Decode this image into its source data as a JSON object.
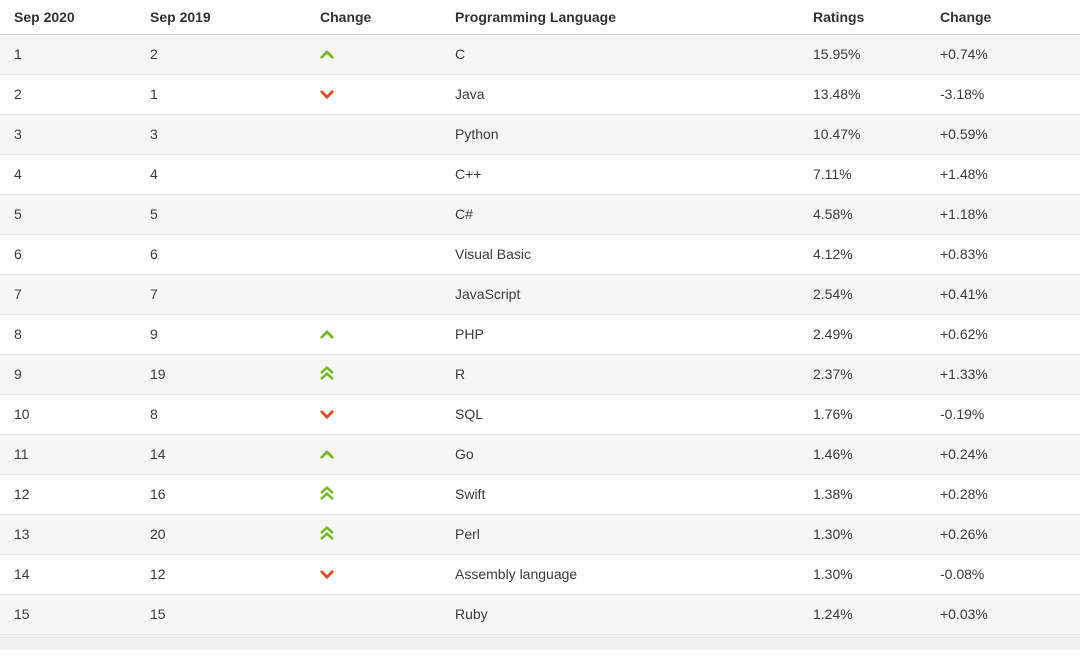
{
  "table": {
    "columns": [
      "Sep 2020",
      "Sep 2019",
      "Change",
      "Programming Language",
      "Ratings",
      "Change"
    ],
    "rows": [
      {
        "rank_2020": "1",
        "rank_2019": "2",
        "move": "up",
        "language": "C",
        "ratings": "15.95%",
        "change": "+0.74%"
      },
      {
        "rank_2020": "2",
        "rank_2019": "1",
        "move": "down",
        "language": "Java",
        "ratings": "13.48%",
        "change": "-3.18%"
      },
      {
        "rank_2020": "3",
        "rank_2019": "3",
        "move": "none",
        "language": "Python",
        "ratings": "10.47%",
        "change": "+0.59%"
      },
      {
        "rank_2020": "4",
        "rank_2019": "4",
        "move": "none",
        "language": "C++",
        "ratings": "7.11%",
        "change": "+1.48%"
      },
      {
        "rank_2020": "5",
        "rank_2019": "5",
        "move": "none",
        "language": "C#",
        "ratings": "4.58%",
        "change": "+1.18%"
      },
      {
        "rank_2020": "6",
        "rank_2019": "6",
        "move": "none",
        "language": "Visual Basic",
        "ratings": "4.12%",
        "change": "+0.83%"
      },
      {
        "rank_2020": "7",
        "rank_2019": "7",
        "move": "none",
        "language": "JavaScript",
        "ratings": "2.54%",
        "change": "+0.41%"
      },
      {
        "rank_2020": "8",
        "rank_2019": "9",
        "move": "up",
        "language": "PHP",
        "ratings": "2.49%",
        "change": "+0.62%"
      },
      {
        "rank_2020": "9",
        "rank_2019": "19",
        "move": "up-double",
        "language": "R",
        "ratings": "2.37%",
        "change": "+1.33%"
      },
      {
        "rank_2020": "10",
        "rank_2019": "8",
        "move": "down",
        "language": "SQL",
        "ratings": "1.76%",
        "change": "-0.19%"
      },
      {
        "rank_2020": "11",
        "rank_2019": "14",
        "move": "up",
        "language": "Go",
        "ratings": "1.46%",
        "change": "+0.24%"
      },
      {
        "rank_2020": "12",
        "rank_2019": "16",
        "move": "up-double",
        "language": "Swift",
        "ratings": "1.38%",
        "change": "+0.28%"
      },
      {
        "rank_2020": "13",
        "rank_2019": "20",
        "move": "up-double",
        "language": "Perl",
        "ratings": "1.30%",
        "change": "+0.26%"
      },
      {
        "rank_2020": "14",
        "rank_2019": "12",
        "move": "down",
        "language": "Assembly language",
        "ratings": "1.30%",
        "change": "-0.08%"
      },
      {
        "rank_2020": "15",
        "rank_2019": "15",
        "move": "none",
        "language": "Ruby",
        "ratings": "1.24%",
        "change": "+0.03%"
      }
    ]
  },
  "icons": {
    "up": "chevron-up-icon",
    "up-double": "double-chevron-up-icon",
    "down": "chevron-down-icon"
  },
  "colors": {
    "up_green": "#76b82a",
    "down_red": "#e2491b"
  }
}
